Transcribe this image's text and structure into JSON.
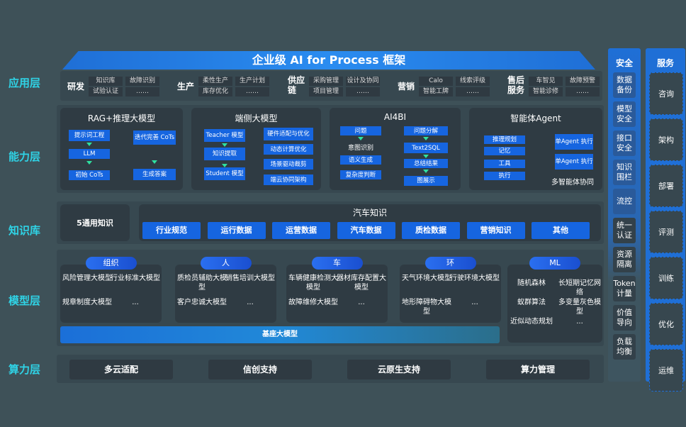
{
  "title": "企业级 AI for Process 框架",
  "layers": {
    "app": "应用层",
    "capability": "能力层",
    "knowledge": "知识库",
    "model": "模型层",
    "compute": "算力层"
  },
  "app": [
    {
      "cat": "研发",
      "chips": [
        "知识库",
        "故障识别",
        "试验认证",
        "……"
      ]
    },
    {
      "cat": "生产",
      "chips": [
        "柔性生产",
        "生产计划",
        "库存优化",
        "……"
      ]
    },
    {
      "cat": "供应链",
      "chips": [
        "采购管理",
        "设计及协同",
        "项目管理",
        "……"
      ]
    },
    {
      "cat": "营销",
      "chips": [
        "Calo",
        "线索评级",
        "智能工牌",
        "……"
      ]
    },
    {
      "cat": "售后服务",
      "chips": [
        "车智见",
        "故障预警",
        "智能诊修",
        "……"
      ]
    }
  ],
  "capability": {
    "rag": {
      "title": "RAG+推理大模型",
      "items": [
        "提示词工程",
        "LLM",
        "初始 CoTs",
        "迭代完善 CoTs",
        "生成答案"
      ]
    },
    "edge": {
      "title": "端侧大模型",
      "items": [
        "Teacher 模型",
        "知识提取",
        "Student 模型",
        "硬件适配与优化",
        "动态计算优化",
        "场景驱动裁剪",
        "端云协同架构"
      ]
    },
    "ai4bi": {
      "title": "AI4BI",
      "items": [
        "问题",
        "意图识别",
        "语义生成",
        "复杂度判断",
        "问题分解",
        "Text2SQL",
        "总结结果",
        "图展示"
      ]
    },
    "agent": {
      "title": "智能体Agent",
      "items": [
        "推理规划",
        "记忆",
        "工具",
        "执行",
        "单Agent 执行",
        "单Agent 执行"
      ],
      "footer": "多智能体协同"
    }
  },
  "knowledge": {
    "general": "5通用知识",
    "auto_title": "汽车知识",
    "items": [
      "行业规范",
      "运行数据",
      "运营数据",
      "汽车数据",
      "质检数据",
      "营销知识",
      "其他"
    ]
  },
  "model": {
    "groups": [
      {
        "name": "组织",
        "items": [
          "风险管理大模型",
          "行业标准大模型",
          "规章制度大模型",
          "..."
        ]
      },
      {
        "name": "人",
        "items": [
          "质检员辅助大模型",
          "销售培训大模型",
          "客户忠诚大模型",
          "..."
        ]
      },
      {
        "name": "车",
        "items": [
          "车辆健康检测大模型",
          "器材库存配置大模型",
          "故障维修大模型",
          "..."
        ]
      },
      {
        "name": "环",
        "items": [
          "天气环境大模型",
          "行驶环境大模型",
          "地形障碍物大模型",
          "..."
        ]
      },
      {
        "name": "ML",
        "items": [
          "随机森林",
          "长短期记忆网络",
          "蚁群算法",
          "多变量灰色模型",
          "近似动态规划",
          "..."
        ]
      }
    ],
    "base": "基座大模型"
  },
  "compute": [
    "多云适配",
    "信创支持",
    "云原生支持",
    "算力管理"
  ],
  "security": {
    "title": "安全",
    "items": [
      "数据备份",
      "模型安全",
      "接口安全",
      "知识围栏",
      "流控",
      "统一认证",
      "资源隔离",
      "Token计量",
      "价值导向",
      "负载均衡"
    ]
  },
  "service": {
    "title": "服务",
    "items": [
      "咨询",
      "架构",
      "部署",
      "评测",
      "训练",
      "优化",
      "运维"
    ]
  }
}
